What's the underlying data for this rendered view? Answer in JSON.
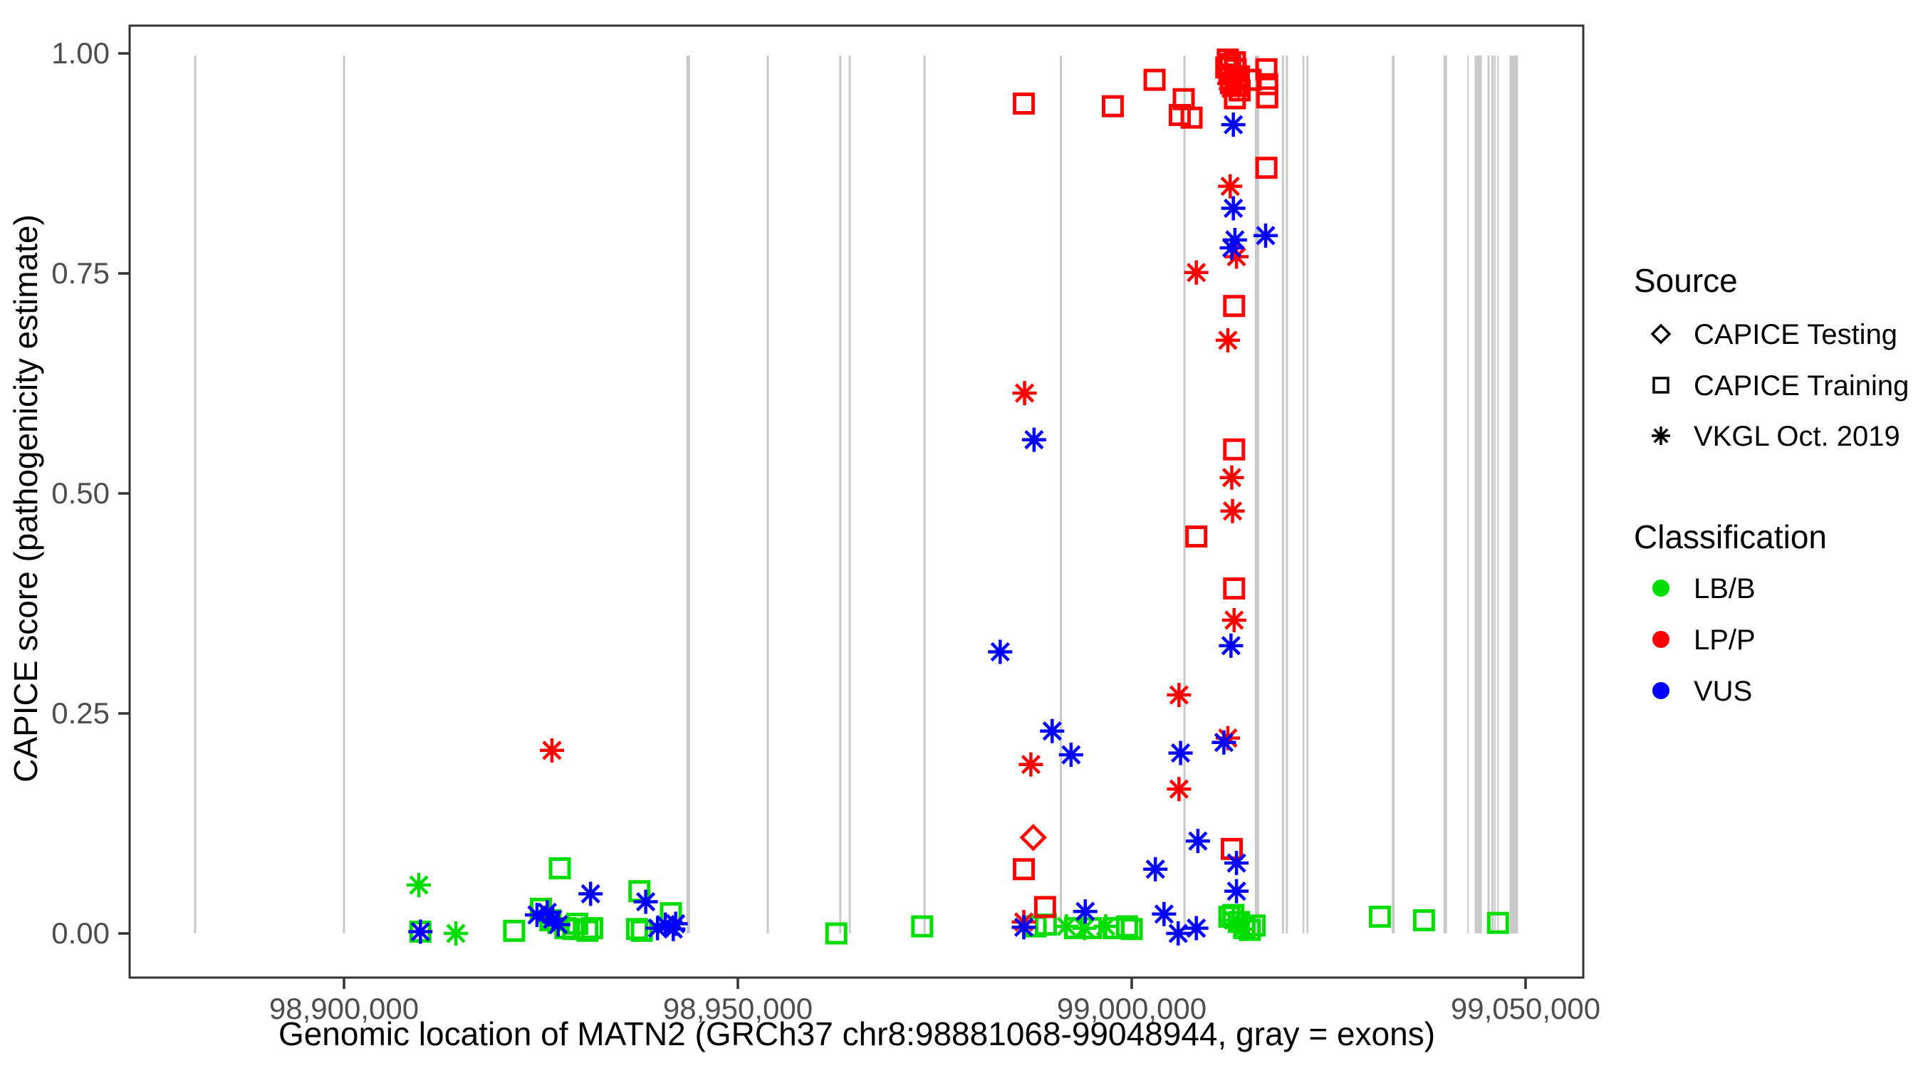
{
  "chart_data": {
    "type": "scatter",
    "title": "",
    "xlabel": "Genomic location of MATN2 (GRCh37 chr8:98881068-99048944, gray = exons)",
    "ylabel": "CAPICE score (pathogenicity estimate)",
    "x_ticks": {
      "positions": [
        98900000,
        98950000,
        99000000,
        99050000
      ],
      "labels": [
        "98,900,000",
        "98,950,000",
        "99,000,000",
        "99,050,000"
      ]
    },
    "y_ticks": {
      "values": [
        0.0,
        0.25,
        0.5,
        0.75,
        1.0
      ],
      "labels": [
        "0.00",
        "0.25",
        "0.50",
        "0.75",
        "1.00"
      ]
    },
    "xlim": [
      98872800,
      99057300
    ],
    "ylim": [
      -0.05,
      1.03
    ],
    "grid": "off",
    "legend_position": "right",
    "gene_region": {
      "chrom": "chr8",
      "start": 98881068,
      "end": 99048944
    },
    "exon_color": "#c9c9c9",
    "exons": [
      {
        "pos": 98881100,
        "w": 3
      },
      {
        "pos": 98900000,
        "w": 3
      },
      {
        "pos": 98943700,
        "w": 5
      },
      {
        "pos": 98953800,
        "w": 3
      },
      {
        "pos": 98963000,
        "w": 3
      },
      {
        "pos": 98964200,
        "w": 3
      },
      {
        "pos": 98973700,
        "w": 3
      },
      {
        "pos": 98991000,
        "w": 3
      },
      {
        "pos": 99006700,
        "w": 3
      },
      {
        "pos": 99015900,
        "w": 6
      },
      {
        "pos": 99019200,
        "w": 3
      },
      {
        "pos": 99019700,
        "w": 3
      },
      {
        "pos": 99021800,
        "w": 2.5
      },
      {
        "pos": 99022300,
        "w": 2.5
      },
      {
        "pos": 99033200,
        "w": 4
      },
      {
        "pos": 99039800,
        "w": 5
      },
      {
        "pos": 99042700,
        "w": 2
      },
      {
        "pos": 99044000,
        "w": 10
      },
      {
        "pos": 99045300,
        "w": 3
      },
      {
        "pos": 99045800,
        "w": 3
      },
      {
        "pos": 99046100,
        "w": 2
      },
      {
        "pos": 99046500,
        "w": 2
      },
      {
        "pos": 99048500,
        "w": 12
      }
    ],
    "series": [
      {
        "source": "CAPICE Testing",
        "classification": "LP/P",
        "marker": "diamond",
        "color": "#ff0000",
        "points": [
          [
            98987500,
            0.109
          ]
        ]
      },
      {
        "source": "CAPICE Training",
        "classification": "LB/B",
        "marker": "square",
        "color": "#00dd00",
        "points": [
          [
            98909700,
            0.002
          ],
          [
            98921600,
            0.003
          ],
          [
            98925000,
            0.028
          ],
          [
            98926200,
            0.015
          ],
          [
            98927400,
            0.074
          ],
          [
            98928100,
            0.006
          ],
          [
            98929100,
            0.005
          ],
          [
            98929600,
            0.011
          ],
          [
            98930900,
            0.003
          ],
          [
            98931500,
            0.006
          ],
          [
            98937200,
            0.005
          ],
          [
            98937500,
            0.048
          ],
          [
            98937800,
            0.003
          ],
          [
            98941500,
            0.023
          ],
          [
            98962500,
            0.0
          ],
          [
            98973400,
            0.008
          ],
          [
            98987800,
            0.008
          ],
          [
            98989100,
            0.01
          ],
          [
            98992800,
            0.006
          ],
          [
            98994800,
            0.006
          ],
          [
            98997700,
            0.006
          ],
          [
            98999400,
            0.008
          ],
          [
            99000000,
            0.005
          ],
          [
            99012400,
            0.019
          ],
          [
            99012900,
            0.021
          ],
          [
            99013600,
            0.013
          ],
          [
            99014300,
            0.006
          ],
          [
            99015000,
            0.004
          ],
          [
            99015600,
            0.009
          ],
          [
            99031500,
            0.019
          ],
          [
            99037100,
            0.015
          ],
          [
            99046500,
            0.012
          ]
        ]
      },
      {
        "source": "CAPICE Training",
        "classification": "LP/P",
        "marker": "square",
        "color": "#ff0000",
        "points": [
          [
            98986300,
            0.943
          ],
          [
            98986300,
            0.073
          ],
          [
            98989000,
            0.03
          ],
          [
            98997600,
            0.94
          ],
          [
            99002900,
            0.97
          ],
          [
            99006100,
            0.93
          ],
          [
            99006600,
            0.948
          ],
          [
            99007600,
            0.927
          ],
          [
            99008200,
            0.451
          ],
          [
            99012000,
            0.984
          ],
          [
            99012200,
            0.993
          ],
          [
            99012400,
            0.976
          ],
          [
            99012500,
            0.988
          ],
          [
            99012600,
            0.966
          ],
          [
            99012700,
            0.096
          ],
          [
            99013000,
            0.713
          ],
          [
            99013000,
            0.55
          ],
          [
            99013000,
            0.392
          ],
          [
            99013100,
            0.99
          ],
          [
            99013100,
            0.949
          ],
          [
            99013200,
            0.982
          ],
          [
            99013300,
            0.963
          ],
          [
            99013600,
            0.974
          ],
          [
            99013700,
            0.958
          ],
          [
            99015100,
            0.97
          ],
          [
            99017100,
            0.982
          ],
          [
            99017100,
            0.87
          ],
          [
            99017200,
            0.965
          ],
          [
            99017200,
            0.95
          ]
        ]
      },
      {
        "source": "VKGL Oct. 2019",
        "classification": "LB/B",
        "marker": "asterisk",
        "color": "#00dd00",
        "points": [
          [
            98909500,
            0.055
          ],
          [
            98914200,
            0.0
          ],
          [
            98926000,
            0.013
          ],
          [
            98991700,
            0.008
          ],
          [
            98994000,
            0.006
          ],
          [
            98996700,
            0.008
          ],
          [
            99012900,
            0.015
          ],
          [
            99014000,
            0.005
          ]
        ]
      },
      {
        "source": "VKGL Oct. 2019",
        "classification": "LP/P",
        "marker": "asterisk",
        "color": "#ff0000",
        "points": [
          [
            98926400,
            0.208
          ],
          [
            98986300,
            0.013
          ],
          [
            98986400,
            0.614
          ],
          [
            98987200,
            0.192
          ],
          [
            99006000,
            0.271
          ],
          [
            99006000,
            0.164
          ],
          [
            99008200,
            0.751
          ],
          [
            99012200,
            0.674
          ],
          [
            99012200,
            0.222
          ],
          [
            99012400,
            0.966
          ],
          [
            99012500,
            0.849
          ],
          [
            99012600,
            0.96
          ],
          [
            99012700,
            0.518
          ],
          [
            99012800,
            0.48
          ],
          [
            99013000,
            0.356
          ],
          [
            99013300,
            0.769
          ]
        ]
      },
      {
        "source": "VKGL Oct. 2019",
        "classification": "VUS",
        "marker": "asterisk",
        "color": "#0000ff",
        "points": [
          [
            98909700,
            0.002
          ],
          [
            98924500,
            0.021
          ],
          [
            98925800,
            0.024
          ],
          [
            98926500,
            0.016
          ],
          [
            98927200,
            0.01
          ],
          [
            98931300,
            0.045
          ],
          [
            98938300,
            0.036
          ],
          [
            98939800,
            0.006
          ],
          [
            98940800,
            0.01
          ],
          [
            98941800,
            0.005
          ],
          [
            98942100,
            0.011
          ],
          [
            98983300,
            0.32
          ],
          [
            98986300,
            0.007
          ],
          [
            98987600,
            0.561
          ],
          [
            98989900,
            0.23
          ],
          [
            98992300,
            0.203
          ],
          [
            98994100,
            0.025
          ],
          [
            99003000,
            0.073
          ],
          [
            99004100,
            0.022
          ],
          [
            99005900,
            0.0
          ],
          [
            99006200,
            0.205
          ],
          [
            99008200,
            0.006
          ],
          [
            99008400,
            0.105
          ],
          [
            99011700,
            0.217
          ],
          [
            99012600,
            0.327
          ],
          [
            99012700,
            0.779
          ],
          [
            99012900,
            0.824
          ],
          [
            99012900,
            0.919
          ],
          [
            99013100,
            0.788
          ],
          [
            99013300,
            0.08
          ],
          [
            99013300,
            0.048
          ],
          [
            99017000,
            0.793
          ]
        ]
      }
    ]
  },
  "legend": {
    "source": {
      "title": "Source",
      "items": [
        {
          "label": "CAPICE Testing",
          "marker": "diamond"
        },
        {
          "label": "CAPICE Training",
          "marker": "square"
        },
        {
          "label": "VKGL Oct. 2019",
          "marker": "asterisk"
        }
      ]
    },
    "classification": {
      "title": "Classification",
      "items": [
        {
          "label": "LB/B",
          "color": "#00dd00"
        },
        {
          "label": "LP/P",
          "color": "#ff0000"
        },
        {
          "label": "VUS",
          "color": "#0000ff"
        }
      ]
    }
  },
  "colors": {
    "accent_green": "#00dd00",
    "accent_red": "#ff0000",
    "accent_blue": "#0000ff",
    "exon_gray": "#c9c9c9",
    "axis_dark": "#333333",
    "tick_text": "#4d4d4d"
  }
}
